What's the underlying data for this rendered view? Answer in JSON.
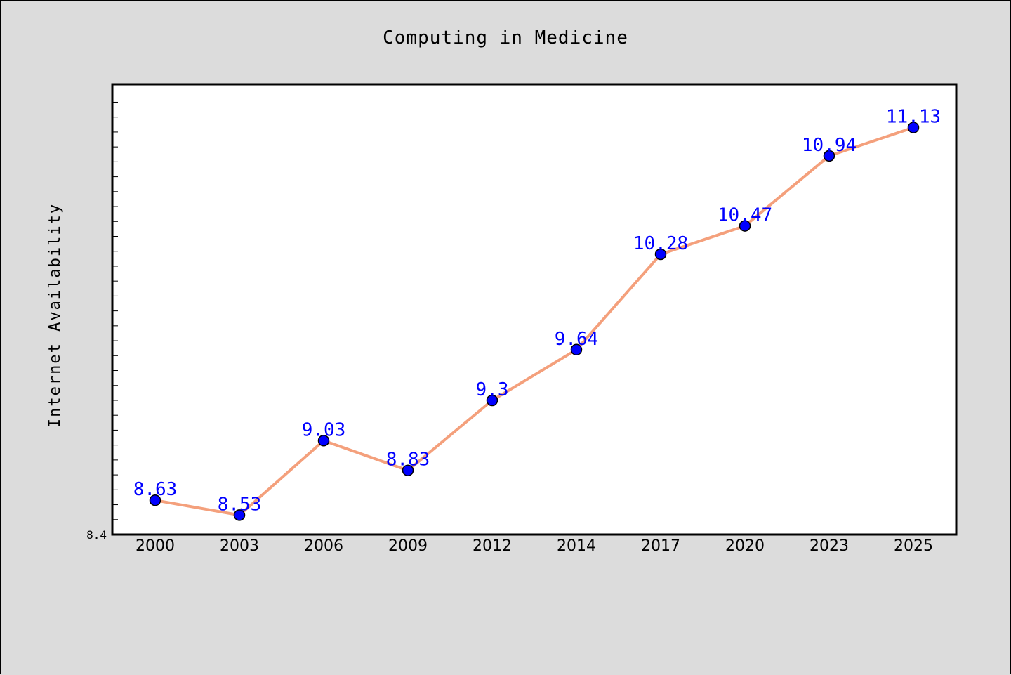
{
  "chart_data": {
    "type": "line",
    "title": "Computing in Medicine",
    "xlabel": "",
    "ylabel": "Internet Availability",
    "categories": [
      "2000",
      "2003",
      "2006",
      "2009",
      "2012",
      "2014",
      "2017",
      "2020",
      "2023",
      "2025"
    ],
    "series": [
      {
        "values": [
          8.63,
          8.53,
          9.03,
          8.83,
          9.3,
          9.64,
          10.28,
          10.47,
          10.94,
          11.13
        ]
      }
    ],
    "data_labels": [
      "8.63",
      "8.53",
      "9.03",
      "8.83",
      "9.3",
      "9.64",
      "10.28",
      "10.47",
      "10.94",
      "11.13"
    ],
    "ytick_labels": [
      "8.4"
    ],
    "ylim": [
      8.4,
      11.42
    ],
    "grid": false,
    "colors": {
      "line": "#f4a07c",
      "marker": "#0000ff",
      "marker_edge": "#000000",
      "data_label": "#0000ff",
      "figure_background": "#dcdcdc",
      "plot_background": "#ffffff"
    }
  }
}
